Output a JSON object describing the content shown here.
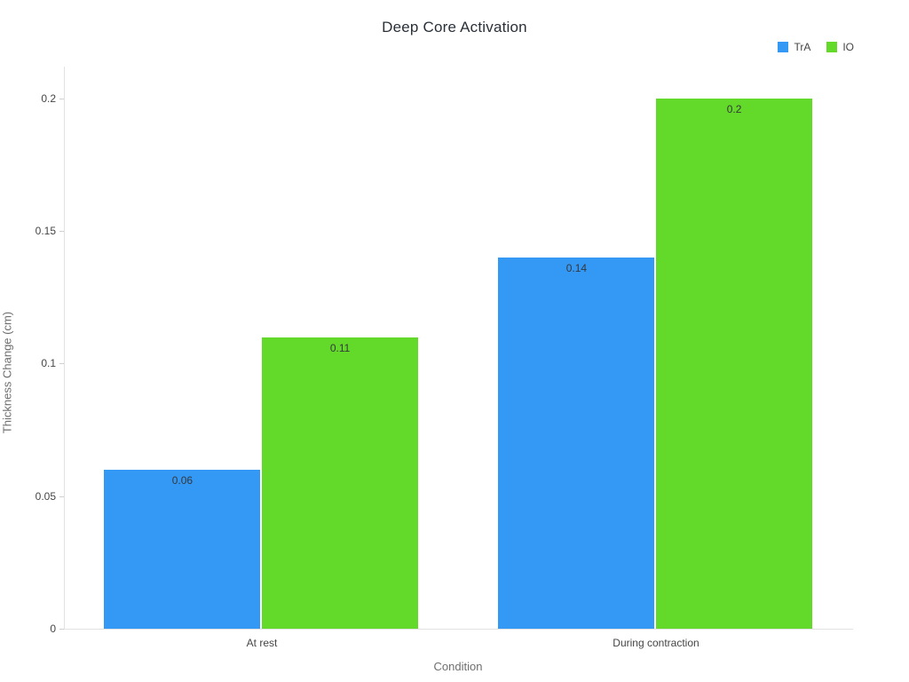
{
  "chart_data": {
    "type": "bar",
    "title": "Deep Core Activation",
    "xlabel": "Condition",
    "ylabel": "Thickness Change (cm)",
    "categories": [
      "At rest",
      "During contraction"
    ],
    "series": [
      {
        "name": "TrA",
        "color": "#3498f5",
        "values": [
          0.06,
          0.14
        ],
        "labels": [
          "0.06",
          "0.14"
        ]
      },
      {
        "name": "IO",
        "color": "#63da29",
        "values": [
          0.11,
          0.2
        ],
        "labels": [
          "0.11",
          "0.2"
        ]
      }
    ],
    "yticks": [
      0,
      0.05,
      0.1,
      0.15,
      0.2
    ],
    "ytick_labels": [
      "0",
      "0.05",
      "0.1",
      "0.15",
      "0.2"
    ],
    "ylim": [
      0,
      0.212
    ],
    "grid": false,
    "legend_position": "top-right",
    "background_color": "#ffffff"
  }
}
